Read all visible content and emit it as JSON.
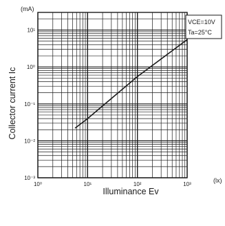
{
  "chart_data": {
    "type": "line",
    "title": "",
    "xlabel": "Illuminance  Ev",
    "ylabel": "Collector current  Ic",
    "x_unit": "(lx)",
    "y_unit": "(mA)",
    "x_scale": "log",
    "y_scale": "log",
    "xlim": [
      1,
      1000
    ],
    "ylim": [
      0.001,
      30
    ],
    "grid": true,
    "x_ticks": [
      {
        "value": 1,
        "label": "10⁰"
      },
      {
        "value": 10,
        "label": "10¹"
      },
      {
        "value": 100,
        "label": "10²"
      },
      {
        "value": 1000,
        "label": "10³"
      }
    ],
    "y_ticks": [
      {
        "value": 0.001,
        "label": "10⁻³"
      },
      {
        "value": 0.01,
        "label": "10⁻²"
      },
      {
        "value": 0.1,
        "label": "10⁻¹"
      },
      {
        "value": 1,
        "label": "10⁰"
      },
      {
        "value": 10,
        "label": "10¹"
      }
    ],
    "annotations": [
      "VCE=10V",
      "Ta=25°C"
    ],
    "legend_position": "top-right",
    "series": [
      {
        "x": [
          5.6,
          10,
          100,
          1000
        ],
        "y": [
          0.022,
          0.04,
          0.55,
          5.5
        ]
      }
    ]
  }
}
